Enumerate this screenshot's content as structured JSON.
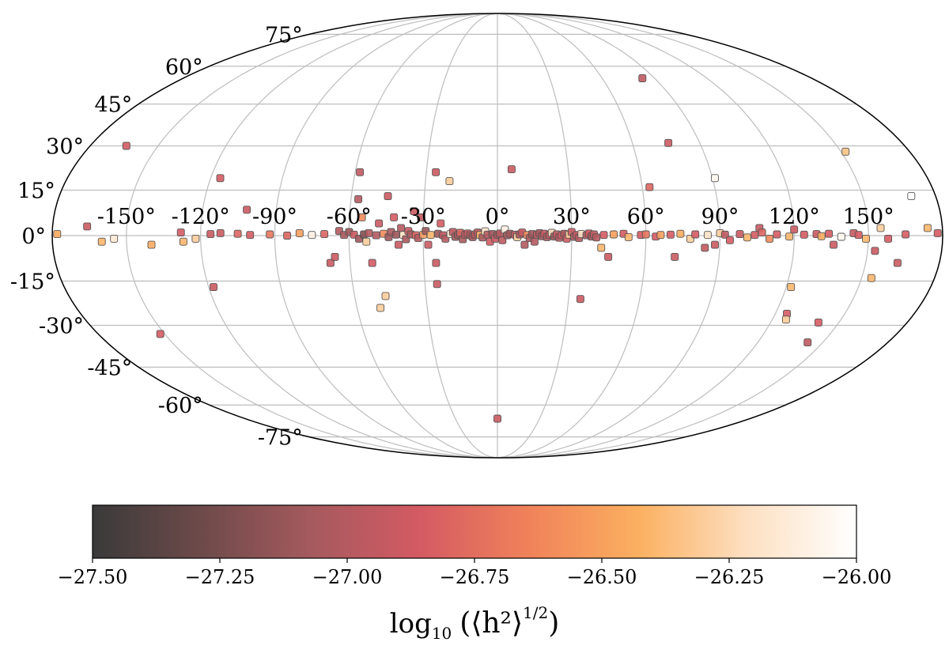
{
  "chart_data": {
    "type": "scatter",
    "projection": "mollweide",
    "xlabel": "",
    "ylabel": "",
    "xlim": [
      -180,
      180
    ],
    "ylim": [
      -90,
      90
    ],
    "grid": true,
    "lon_ticks": [
      {
        "value": -150,
        "label": "-150°"
      },
      {
        "value": -120,
        "label": "-120°"
      },
      {
        "value": -90,
        "label": "-90°"
      },
      {
        "value": -60,
        "label": "-60°"
      },
      {
        "value": -30,
        "label": "-30°"
      },
      {
        "value": 0,
        "label": "0°"
      },
      {
        "value": 30,
        "label": "30°"
      },
      {
        "value": 60,
        "label": "60°"
      },
      {
        "value": 90,
        "label": "90°"
      },
      {
        "value": 120,
        "label": "120°"
      },
      {
        "value": 150,
        "label": "150°"
      }
    ],
    "lat_ticks": [
      {
        "value": 75,
        "label": "75°"
      },
      {
        "value": 60,
        "label": "60°"
      },
      {
        "value": 45,
        "label": "45°"
      },
      {
        "value": 30,
        "label": "30°"
      },
      {
        "value": 15,
        "label": "15°"
      },
      {
        "value": 0,
        "label": "0°"
      },
      {
        "value": -15,
        "label": "-15°"
      },
      {
        "value": -30,
        "label": "-30°"
      },
      {
        "value": -45,
        "label": "-45°"
      },
      {
        "value": -60,
        "label": "-60°"
      },
      {
        "value": -75,
        "label": "-75°"
      }
    ],
    "colorbar": {
      "label_main": "log",
      "label_sub": "10",
      "label_expr": "(⟨h²⟩",
      "label_exp": "1/2",
      "label_close": ")",
      "min": -27.5,
      "max": -26.0,
      "ticks": [
        {
          "value": -27.5,
          "label": "−27.50"
        },
        {
          "value": -27.25,
          "label": "−27.25"
        },
        {
          "value": -27.0,
          "label": "−27.00"
        },
        {
          "value": -26.75,
          "label": "−26.75"
        },
        {
          "value": -26.5,
          "label": "−26.50"
        },
        {
          "value": -26.25,
          "label": "−26.25"
        },
        {
          "value": -26.0,
          "label": "−26.00"
        }
      ],
      "colormap": [
        "#3a3a3a",
        "#6e4a4a",
        "#a55a5e",
        "#d45a63",
        "#f0825a",
        "#fbb060",
        "#fde0c2",
        "#ffffff"
      ]
    },
    "points": [
      {
        "lon": -178,
        "lat": 0.5,
        "v": -26.45
      },
      {
        "lon": -164,
        "lat": 30,
        "v": -26.85
      },
      {
        "lon": -166,
        "lat": 3,
        "v": -26.9
      },
      {
        "lon": -160,
        "lat": -2,
        "v": -26.4
      },
      {
        "lon": -155,
        "lat": -1,
        "v": -26.15
      },
      {
        "lon": -152,
        "lat": -33,
        "v": -26.85
      },
      {
        "lon": -140,
        "lat": -3,
        "v": -26.45
      },
      {
        "lon": -128,
        "lat": 1,
        "v": -26.85
      },
      {
        "lon": -127,
        "lat": -2,
        "v": -26.4
      },
      {
        "lon": -122,
        "lat": -1,
        "v": -26.3
      },
      {
        "lon": -116,
        "lat": 19,
        "v": -26.85
      },
      {
        "lon": -116,
        "lat": 0.5,
        "v": -26.9
      },
      {
        "lon": -118,
        "lat": -17,
        "v": -26.9
      },
      {
        "lon": -112,
        "lat": 0.8,
        "v": -26.9
      },
      {
        "lon": -105,
        "lat": 0.6,
        "v": -26.8
      },
      {
        "lon": -102,
        "lat": 8.5,
        "v": -26.9
      },
      {
        "lon": -100,
        "lat": 0.2,
        "v": -26.85
      },
      {
        "lon": -92,
        "lat": 0.4,
        "v": -26.7
      },
      {
        "lon": -85,
        "lat": 0,
        "v": -26.8
      },
      {
        "lon": -80,
        "lat": 0.8,
        "v": -26.5
      },
      {
        "lon": -75,
        "lat": 0.2,
        "v": -26.1
      },
      {
        "lon": -70,
        "lat": 0.5,
        "v": -26.8
      },
      {
        "lon": -68,
        "lat": -9,
        "v": -26.9
      },
      {
        "lon": -66,
        "lat": -7,
        "v": -26.9
      },
      {
        "lon": -64,
        "lat": 1.5,
        "v": -27.0
      },
      {
        "lon": -62,
        "lat": 0.2,
        "v": -27.05
      },
      {
        "lon": -60,
        "lat": 1.2,
        "v": -27.1
      },
      {
        "lon": -58,
        "lat": 21,
        "v": -26.95
      },
      {
        "lon": -58,
        "lat": 0.3,
        "v": -26.9
      },
      {
        "lon": -57,
        "lat": 12,
        "v": -27.0
      },
      {
        "lon": -56,
        "lat": -1,
        "v": -27.1
      },
      {
        "lon": -55,
        "lat": 6,
        "v": -26.6
      },
      {
        "lon": -54,
        "lat": 0.4,
        "v": -27.2
      },
      {
        "lon": -53,
        "lat": -2,
        "v": -26.3
      },
      {
        "lon": -52,
        "lat": 0.8,
        "v": -27.0
      },
      {
        "lon": -51,
        "lat": -9,
        "v": -26.85
      },
      {
        "lon": -50,
        "lat": -24,
        "v": -26.3
      },
      {
        "lon": -49,
        "lat": 0.1,
        "v": -27.0
      },
      {
        "lon": -48,
        "lat": 4,
        "v": -26.9
      },
      {
        "lon": -47,
        "lat": -20,
        "v": -26.3
      },
      {
        "lon": -46,
        "lat": 0.6,
        "v": -26.6
      },
      {
        "lon": -45,
        "lat": 13,
        "v": -26.9
      },
      {
        "lon": -44,
        "lat": -0.5,
        "v": -27.1
      },
      {
        "lon": -43,
        "lat": 1.2,
        "v": -27.05
      },
      {
        "lon": -42,
        "lat": 6,
        "v": -26.85
      },
      {
        "lon": -41,
        "lat": 0.3,
        "v": -27.1
      },
      {
        "lon": -40,
        "lat": -3,
        "v": -26.9
      },
      {
        "lon": -39,
        "lat": 2.5,
        "v": -27.0
      },
      {
        "lon": -38,
        "lat": 0.2,
        "v": -26.2
      },
      {
        "lon": -37,
        "lat": -1.2,
        "v": -27.05
      },
      {
        "lon": -36,
        "lat": 1.5,
        "v": -26.9
      },
      {
        "lon": -35,
        "lat": 0.4,
        "v": -27.05
      },
      {
        "lon": -34,
        "lat": 8,
        "v": -26.9
      },
      {
        "lon": -33,
        "lat": 0.1,
        "v": -26.8
      },
      {
        "lon": -32,
        "lat": -0.8,
        "v": -27.0
      },
      {
        "lon": -31,
        "lat": 6,
        "v": -26.95
      },
      {
        "lon": -30,
        "lat": 0.3,
        "v": -26.5
      },
      {
        "lon": -29,
        "lat": 1.5,
        "v": -27.1
      },
      {
        "lon": -28,
        "lat": -3,
        "v": -26.9
      },
      {
        "lon": -27,
        "lat": 0.2,
        "v": -26.4
      },
      {
        "lon": -26,
        "lat": 21,
        "v": -26.9
      },
      {
        "lon": -25,
        "lat": -9,
        "v": -26.9
      },
      {
        "lon": -25,
        "lat": -16,
        "v": -26.9
      },
      {
        "lon": -24,
        "lat": 0.6,
        "v": -27.1
      },
      {
        "lon": -23,
        "lat": 4,
        "v": -26.85
      },
      {
        "lon": -22,
        "lat": 0.1,
        "v": -26.95
      },
      {
        "lon": -21,
        "lat": -1,
        "v": -27.0
      },
      {
        "lon": -20,
        "lat": 18,
        "v": -26.3
      },
      {
        "lon": -19,
        "lat": 0.5,
        "v": -26.15
      },
      {
        "lon": -18,
        "lat": 1.2,
        "v": -26.95
      },
      {
        "lon": -17,
        "lat": -0.4,
        "v": -27.05
      },
      {
        "lon": -16,
        "lat": 0.2,
        "v": -27.1
      },
      {
        "lon": -15,
        "lat": 0.9,
        "v": -26.8
      },
      {
        "lon": -14,
        "lat": -1.2,
        "v": -27.05
      },
      {
        "lon": -13,
        "lat": 0.3,
        "v": -27.0
      },
      {
        "lon": -12,
        "lat": 0.7,
        "v": -26.9
      },
      {
        "lon": -11,
        "lat": 0.1,
        "v": -27.05
      },
      {
        "lon": -10,
        "lat": -0.5,
        "v": -27.1
      },
      {
        "lon": -9,
        "lat": 0.4,
        "v": -26.95
      },
      {
        "lon": -8,
        "lat": 1,
        "v": -27.0
      },
      {
        "lon": -7,
        "lat": 0.2,
        "v": -26.4
      },
      {
        "lon": -6,
        "lat": -0.6,
        "v": -27.05
      },
      {
        "lon": -5,
        "lat": 1.4,
        "v": -26.2
      },
      {
        "lon": -4,
        "lat": 0.3,
        "v": -27.0
      },
      {
        "lon": -3,
        "lat": -2,
        "v": -26.85
      },
      {
        "lon": -2,
        "lat": 0.5,
        "v": -27.1
      },
      {
        "lon": -1,
        "lat": -1,
        "v": -26.9
      },
      {
        "lon": 0,
        "lat": -66,
        "v": -26.9
      },
      {
        "lon": 0,
        "lat": 0.2,
        "v": -27.1
      },
      {
        "lon": 1,
        "lat": 0.7,
        "v": -27.0
      },
      {
        "lon": 2,
        "lat": -1.5,
        "v": -26.95
      },
      {
        "lon": 3,
        "lat": 2,
        "v": -26.1
      },
      {
        "lon": 4,
        "lat": 0.1,
        "v": -27.05
      },
      {
        "lon": 5,
        "lat": 0.6,
        "v": -27.1
      },
      {
        "lon": 6,
        "lat": 22,
        "v": -26.9
      },
      {
        "lon": 7,
        "lat": 0.3,
        "v": -27.0
      },
      {
        "lon": 8,
        "lat": -0.5,
        "v": -26.3
      },
      {
        "lon": 9,
        "lat": 0.4,
        "v": -27.05
      },
      {
        "lon": 10,
        "lat": 1,
        "v": -26.9
      },
      {
        "lon": 11,
        "lat": -3,
        "v": -27.0
      },
      {
        "lon": 12,
        "lat": 0.2,
        "v": -26.6
      },
      {
        "lon": 13,
        "lat": -0.8,
        "v": -27.05
      },
      {
        "lon": 14,
        "lat": 0.5,
        "v": -27.1
      },
      {
        "lon": 15,
        "lat": -2,
        "v": -27.0
      },
      {
        "lon": 16,
        "lat": 0.3,
        "v": -26.95
      },
      {
        "lon": 17,
        "lat": 0.8,
        "v": -27.05
      },
      {
        "lon": 18,
        "lat": -0.2,
        "v": -27.1
      },
      {
        "lon": 19,
        "lat": 0.6,
        "v": -26.9
      },
      {
        "lon": 20,
        "lat": -0.5,
        "v": -27.05
      },
      {
        "lon": 21,
        "lat": 0.2,
        "v": -27.0
      },
      {
        "lon": 22,
        "lat": 0.9,
        "v": -26.2
      },
      {
        "lon": 23,
        "lat": -0.3,
        "v": -27.1
      },
      {
        "lon": 24,
        "lat": 0.4,
        "v": -26.95
      },
      {
        "lon": 25,
        "lat": -0.7,
        "v": -27.0
      },
      {
        "lon": 26,
        "lat": 0.1,
        "v": -26.85
      },
      {
        "lon": 27,
        "lat": 0.6,
        "v": -27.05
      },
      {
        "lon": 28,
        "lat": -1,
        "v": -26.9
      },
      {
        "lon": 29,
        "lat": 0.3,
        "v": -26.3
      },
      {
        "lon": 30,
        "lat": 1.2,
        "v": -26.9
      },
      {
        "lon": 31,
        "lat": -0.4,
        "v": -27.05
      },
      {
        "lon": 32,
        "lat": 0.2,
        "v": -26.95
      },
      {
        "lon": 33,
        "lat": -0.8,
        "v": -27.0
      },
      {
        "lon": 34,
        "lat": 0.5,
        "v": -26.2
      },
      {
        "lon": 35,
        "lat": -21,
        "v": -26.9
      },
      {
        "lon": 36,
        "lat": 0.1,
        "v": -27.05
      },
      {
        "lon": 37,
        "lat": 0.7,
        "v": -26.85
      },
      {
        "lon": 38,
        "lat": -0.3,
        "v": -27.1
      },
      {
        "lon": 39,
        "lat": 0.4,
        "v": -26.95
      },
      {
        "lon": 40,
        "lat": -0.6,
        "v": -27.0
      },
      {
        "lon": 42,
        "lat": -4,
        "v": -26.4
      },
      {
        "lon": 43,
        "lat": 0.2,
        "v": -26.85
      },
      {
        "lon": 45,
        "lat": -7,
        "v": -26.9
      },
      {
        "lon": 47,
        "lat": 0.4,
        "v": -26.5
      },
      {
        "lon": 51,
        "lat": 0.6,
        "v": -26.85
      },
      {
        "lon": 53,
        "lat": -0.5,
        "v": -26.4
      },
      {
        "lon": 58,
        "lat": 0.2,
        "v": -26.85
      },
      {
        "lon": 60,
        "lat": 0.4,
        "v": -26.7
      },
      {
        "lon": 63,
        "lat": 16,
        "v": -26.8
      },
      {
        "lon": 64,
        "lat": -0.3,
        "v": -26.85
      },
      {
        "lon": 66,
        "lat": 0.2,
        "v": -26.5
      },
      {
        "lon": 70,
        "lat": 0.3,
        "v": -26.85
      },
      {
        "lon": 72,
        "lat": -7,
        "v": -26.9
      },
      {
        "lon": 74,
        "lat": 0.6,
        "v": -26.45
      },
      {
        "lon": 76,
        "lat": 31,
        "v": -26.9
      },
      {
        "lon": 78,
        "lat": -1,
        "v": -26.3
      },
      {
        "lon": 80,
        "lat": 0.4,
        "v": -26.85
      },
      {
        "lon": 83,
        "lat": 55,
        "v": -26.95
      },
      {
        "lon": 84,
        "lat": -4,
        "v": -26.95
      },
      {
        "lon": 85,
        "lat": 0.2,
        "v": -26.2
      },
      {
        "lon": 88,
        "lat": -3,
        "v": -26.9
      },
      {
        "lon": 90,
        "lat": 0.8,
        "v": -26.3
      },
      {
        "lon": 91,
        "lat": 19,
        "v": -26.05
      },
      {
        "lon": 92,
        "lat": 0.3,
        "v": -26.95
      },
      {
        "lon": 94,
        "lat": -1.5,
        "v": -26.85
      },
      {
        "lon": 98,
        "lat": 0.5,
        "v": -26.9
      },
      {
        "lon": 101,
        "lat": -0.6,
        "v": -26.4
      },
      {
        "lon": 104,
        "lat": 0.2,
        "v": -26.85
      },
      {
        "lon": 106,
        "lat": 2.5,
        "v": -26.9
      },
      {
        "lon": 107,
        "lat": 1,
        "v": -26.8
      },
      {
        "lon": 110,
        "lat": -1,
        "v": -26.6
      },
      {
        "lon": 113,
        "lat": 0.4,
        "v": -26.85
      },
      {
        "lon": 118,
        "lat": -0.3,
        "v": -26.4
      },
      {
        "lon": 120,
        "lat": 2,
        "v": -26.9
      },
      {
        "lon": 122,
        "lat": -17,
        "v": -26.4
      },
      {
        "lon": 124,
        "lat": 0.3,
        "v": -26.85
      },
      {
        "lon": 125,
        "lat": -26,
        "v": -26.85
      },
      {
        "lon": 126,
        "lat": -28,
        "v": -26.3
      },
      {
        "lon": 129,
        "lat": 0.5,
        "v": -26.9
      },
      {
        "lon": 131,
        "lat": -0.2,
        "v": -26.45
      },
      {
        "lon": 134,
        "lat": 0.6,
        "v": -26.85
      },
      {
        "lon": 136,
        "lat": -3,
        "v": -26.9
      },
      {
        "lon": 139,
        "lat": -0.4,
        "v": -26.05
      },
      {
        "lon": 141,
        "lat": -29,
        "v": -26.85
      },
      {
        "lon": 143,
        "lat": -36,
        "v": -26.95
      },
      {
        "lon": 144,
        "lat": 0.8,
        "v": -26.9
      },
      {
        "lon": 146,
        "lat": 0.2,
        "v": -26.85
      },
      {
        "lon": 149,
        "lat": -1,
        "v": -26.4
      },
      {
        "lon": 152,
        "lat": 28,
        "v": -26.35
      },
      {
        "lon": 153,
        "lat": -5,
        "v": -26.9
      },
      {
        "lon": 154,
        "lat": -14,
        "v": -26.4
      },
      {
        "lon": 155,
        "lat": 2.5,
        "v": -26.3
      },
      {
        "lon": 158,
        "lat": -1,
        "v": -26.85
      },
      {
        "lon": 163,
        "lat": -9,
        "v": -26.9
      },
      {
        "lon": 165,
        "lat": 0.4,
        "v": -26.85
      },
      {
        "lon": 170,
        "lat": 13,
        "v": -26.0
      },
      {
        "lon": 174,
        "lat": 2.5,
        "v": -26.4
      },
      {
        "lon": 178,
        "lat": 0.8,
        "v": -26.85
      }
    ]
  }
}
